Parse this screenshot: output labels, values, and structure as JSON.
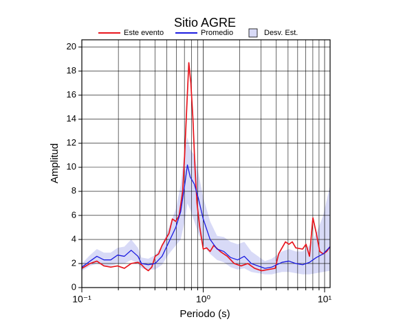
{
  "chart_data": {
    "type": "line",
    "title": "Sitio AGRE",
    "xlabel": "Periodo (s)",
    "ylabel": "Amplitud",
    "xscale": "log",
    "grid": true,
    "xlim": [
      0.1,
      11.1
    ],
    "ylim": [
      0,
      20.6
    ],
    "xticks": [
      {
        "value": 0.1,
        "label": "10⁻¹"
      },
      {
        "value": 1,
        "label": "10⁰"
      },
      {
        "value": 10,
        "label": "10¹"
      }
    ],
    "xminorticks": [
      0.2,
      0.3,
      0.4,
      0.5,
      0.6,
      0.7,
      0.8,
      0.9,
      2,
      3,
      4,
      5,
      6,
      7,
      8,
      9
    ],
    "yticks": [
      0,
      2,
      4,
      6,
      8,
      10,
      12,
      14,
      16,
      18,
      20
    ],
    "series": [
      {
        "name": "Este evento",
        "color": "#e8141c",
        "x": [
          0.1,
          0.117,
          0.133,
          0.152,
          0.173,
          0.197,
          0.224,
          0.255,
          0.29,
          0.31,
          0.331,
          0.353,
          0.377,
          0.402,
          0.429,
          0.458,
          0.489,
          0.522,
          0.557,
          0.594,
          0.634,
          0.677,
          0.703,
          0.732,
          0.761,
          0.791,
          0.823,
          0.855,
          0.889,
          0.937,
          1.0,
          1.067,
          1.14,
          1.22,
          1.38,
          1.58,
          1.8,
          2.05,
          2.33,
          2.65,
          3.02,
          3.44,
          3.92,
          4.18,
          4.46,
          4.76,
          5.08,
          5.42,
          5.79,
          6.59,
          7.03,
          7.51,
          8.01,
          8.55,
          9.12,
          9.74,
          10.4,
          11.1
        ],
        "values": [
          1.6,
          2.0,
          2.2,
          1.8,
          1.7,
          1.8,
          1.6,
          2.0,
          2.1,
          1.9,
          1.6,
          1.4,
          1.7,
          2.6,
          2.8,
          3.5,
          4.0,
          4.5,
          5.7,
          5.5,
          6.0,
          8.0,
          11.0,
          15.0,
          18.7,
          17.0,
          14.0,
          10.0,
          7.0,
          5.0,
          3.2,
          3.3,
          3.0,
          3.5,
          3.0,
          2.6,
          2.0,
          1.8,
          2.0,
          1.6,
          1.4,
          1.5,
          1.6,
          2.8,
          3.3,
          3.8,
          3.6,
          3.8,
          3.3,
          3.2,
          3.6,
          2.6,
          5.8,
          4.5,
          3.0,
          2.8,
          3.0,
          3.4
        ]
      },
      {
        "name": "Promedio",
        "color": "#1a1ae0",
        "x": [
          0.1,
          0.117,
          0.133,
          0.152,
          0.173,
          0.197,
          0.224,
          0.255,
          0.29,
          0.31,
          0.353,
          0.402,
          0.458,
          0.522,
          0.594,
          0.652,
          0.703,
          0.741,
          0.781,
          0.845,
          0.913,
          1.0,
          1.14,
          1.3,
          1.48,
          1.68,
          1.92,
          2.18,
          2.49,
          2.83,
          3.22,
          3.67,
          4.46,
          5.08,
          5.79,
          6.59,
          7.51,
          8.55,
          9.74,
          11.1
        ],
        "values": [
          1.7,
          2.2,
          2.6,
          2.3,
          2.3,
          2.7,
          2.6,
          3.1,
          2.6,
          2.0,
          1.9,
          2.0,
          2.6,
          3.8,
          5.0,
          6.3,
          8.5,
          10.2,
          9.2,
          8.6,
          7.4,
          5.7,
          4.0,
          3.2,
          3.0,
          2.5,
          2.3,
          2.6,
          2.0,
          1.8,
          1.6,
          1.7,
          2.1,
          2.2,
          2.0,
          1.9,
          2.1,
          2.5,
          2.8,
          3.4
        ]
      },
      {
        "name": "Desv. Est.",
        "color": "#d8daf7",
        "x": [
          0.1,
          0.117,
          0.133,
          0.152,
          0.173,
          0.197,
          0.224,
          0.255,
          0.29,
          0.31,
          0.353,
          0.402,
          0.458,
          0.522,
          0.594,
          0.652,
          0.703,
          0.741,
          0.781,
          0.845,
          0.913,
          1.0,
          1.14,
          1.3,
          1.48,
          1.68,
          1.92,
          2.18,
          2.49,
          2.83,
          3.22,
          3.67,
          4.46,
          5.08,
          5.79,
          6.59,
          7.51,
          8.55,
          9.74,
          11.1
        ],
        "lower": [
          1.4,
          1.8,
          2.0,
          1.8,
          1.8,
          2.0,
          2.0,
          2.3,
          2.0,
          1.6,
          1.5,
          1.5,
          1.9,
          2.8,
          3.5,
          4.0,
          5.5,
          7.0,
          6.5,
          5.5,
          4.5,
          3.5,
          2.8,
          2.3,
          2.1,
          1.7,
          1.5,
          1.6,
          1.3,
          1.2,
          1.1,
          1.1,
          1.3,
          1.3,
          1.2,
          1.1,
          1.1,
          1.2,
          1.3,
          1.4
        ],
        "upper": [
          2.0,
          2.7,
          3.2,
          2.9,
          2.9,
          3.3,
          3.4,
          4.0,
          3.3,
          2.5,
          2.4,
          2.7,
          3.5,
          5.0,
          6.5,
          8.5,
          11.5,
          12.5,
          11.5,
          11.0,
          9.5,
          7.5,
          5.5,
          4.3,
          4.2,
          3.8,
          3.6,
          3.8,
          3.0,
          2.6,
          2.2,
          2.4,
          3.0,
          3.2,
          3.0,
          3.0,
          3.5,
          4.5,
          6.0,
          8.5
        ]
      }
    ]
  }
}
